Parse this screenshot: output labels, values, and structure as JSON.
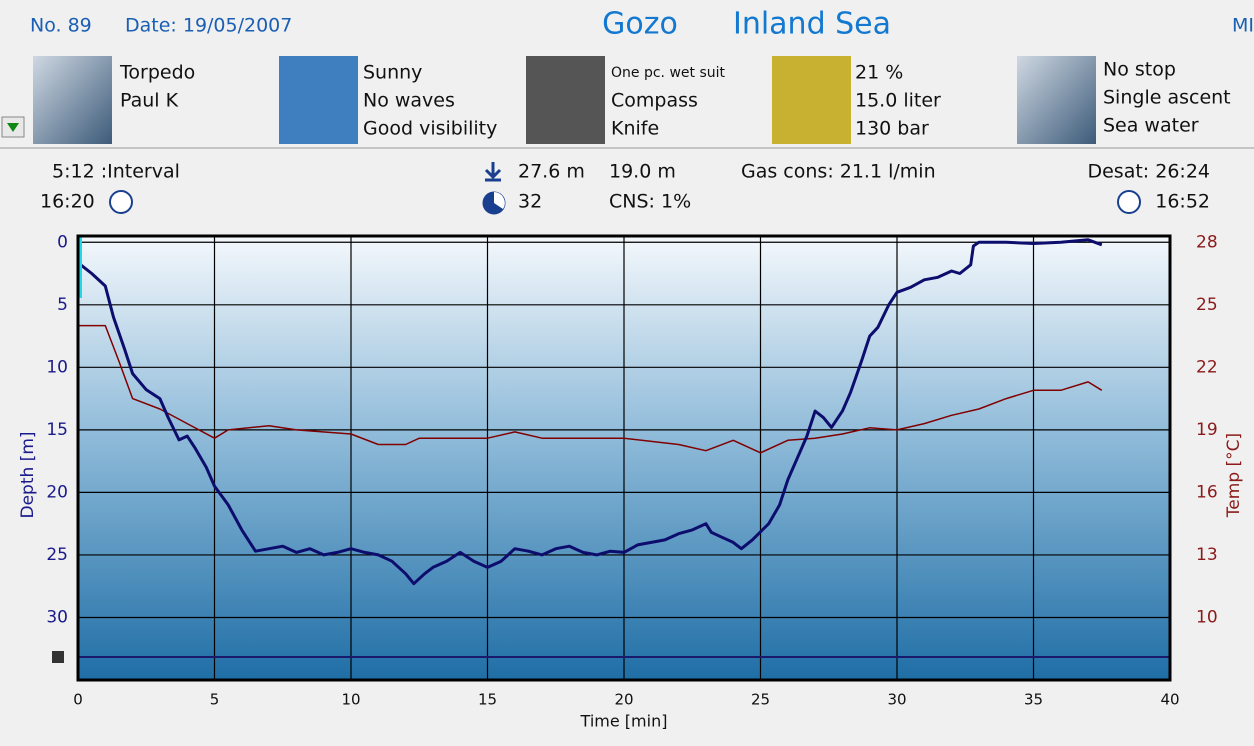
{
  "header": {
    "number": "No. 89",
    "date": "Date: 19/05/2007",
    "location": "Gozo",
    "site": "Inland Sea",
    "right": "MI"
  },
  "panels": [
    {
      "lines": [
        "Torpedo",
        "Paul K"
      ]
    },
    {
      "lines": [
        "Sunny",
        "No waves",
        "Good visibility"
      ]
    },
    {
      "lines": [
        "One pc. wet suit",
        "Compass",
        "Knife"
      ]
    },
    {
      "lines": [
        "21 %",
        "15.0 liter",
        "130 bar"
      ]
    },
    {
      "lines": [
        "No stop",
        "Single ascent",
        "Sea water"
      ]
    }
  ],
  "stats": {
    "interval": "5:12 :Interval",
    "start_time": "16:20",
    "max_depth": "27.6 m",
    "avg_depth": "19.0 m",
    "gas_cons": "Gas cons: 21.1 l/min",
    "desat": "Desat: 26:24",
    "duration": "32",
    "cns": "CNS: 1%",
    "end_time": "16:52"
  },
  "chart_data": {
    "type": "line",
    "x_label": "Time [min]",
    "y_label": "Depth [m]",
    "y2_label": "Temp [°C]",
    "xlim": [
      0,
      40
    ],
    "xticks": [
      0,
      5,
      10,
      15,
      20,
      25,
      30,
      35,
      40
    ],
    "ylim": [
      -0.5,
      35
    ],
    "y_inverted": true,
    "yticks": [
      0,
      5,
      10,
      15,
      20,
      25,
      30
    ],
    "y2lim": [
      7,
      28.3
    ],
    "y2ticks": [
      28,
      25,
      22,
      19,
      16,
      13,
      10
    ],
    "grid": true,
    "series": [
      {
        "color": "#0d0d6e",
        "axis": "y",
        "x": [
          0,
          0.1,
          0.5,
          1,
          1.3,
          1.7,
          2,
          2.5,
          3,
          3.3,
          3.7,
          4,
          4.3,
          4.7,
          5,
          5.5,
          6,
          6.5,
          7,
          7.5,
          8,
          8.5,
          9,
          9.5,
          10,
          10.5,
          11,
          11.5,
          12,
          12.3,
          12.7,
          13,
          13.5,
          14,
          14.5,
          15,
          15.5,
          16,
          16.5,
          17,
          17.5,
          18,
          18.5,
          19,
          19.5,
          20,
          20.5,
          21,
          21.5,
          22,
          22.5,
          23,
          23.2,
          23.5,
          24,
          24.3,
          24.7,
          25.3,
          25.7,
          26,
          26.3,
          26.7,
          27,
          27.3,
          27.6,
          28,
          28.3,
          28.7,
          29,
          29.3,
          29.7,
          30,
          30.5,
          31,
          31.5,
          32,
          32.3,
          32.7,
          32.8,
          33,
          34,
          35,
          36,
          37,
          37.5
        ],
        "values": [
          0,
          1.8,
          2.5,
          3.5,
          6,
          8.5,
          10.5,
          11.8,
          12.5,
          14,
          15.8,
          15.5,
          16.5,
          18,
          19.5,
          21,
          23,
          24.7,
          24.5,
          24.3,
          24.8,
          24.5,
          25,
          24.8,
          24.5,
          24.8,
          25,
          25.5,
          26.5,
          27.3,
          26.5,
          26,
          25.5,
          24.8,
          25.5,
          26,
          25.5,
          24.5,
          24.7,
          25,
          24.5,
          24.3,
          24.8,
          25,
          24.7,
          24.8,
          24.2,
          24,
          23.8,
          23.3,
          23,
          22.5,
          23.2,
          23.5,
          24,
          24.5,
          23.8,
          22.5,
          21,
          19,
          17.5,
          15.5,
          13.5,
          14,
          14.8,
          13.5,
          12,
          9.5,
          7.5,
          6.8,
          5,
          4,
          3.6,
          3,
          2.8,
          2.3,
          2.5,
          1.8,
          0.3,
          0,
          0,
          0.1,
          0,
          -0.2,
          0.2
        ]
      },
      {
        "color": "#800000",
        "axis": "y2",
        "x": [
          0,
          1,
          1.5,
          2,
          3,
          4,
          5,
          5.5,
          7,
          8,
          10,
          11,
          12,
          12.5,
          15,
          16,
          17,
          20,
          22,
          23,
          24,
          25,
          26,
          27,
          28,
          29,
          30,
          31,
          32,
          33,
          34,
          35,
          36,
          37,
          37.5
        ],
        "values": [
          24,
          24,
          22.3,
          20.5,
          20,
          19.3,
          18.6,
          19,
          19.2,
          19,
          18.8,
          18.3,
          18.3,
          18.6,
          18.6,
          18.9,
          18.6,
          18.6,
          18.3,
          18,
          18.5,
          17.9,
          18.5,
          18.6,
          18.8,
          19.1,
          19,
          19.3,
          19.7,
          20,
          20.5,
          20.9,
          20.9,
          21.3,
          20.9
        ]
      }
    ]
  }
}
